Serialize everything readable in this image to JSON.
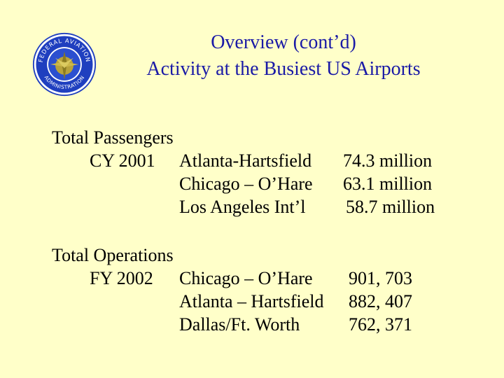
{
  "seal": {
    "top_text": "FEDERAL AVIATION",
    "bottom_text": "ADMINISTRATION",
    "colors": {
      "ring": "#1f3fbf",
      "inner": "#2b4fd0",
      "text": "#ffffff",
      "emblem": "#b8a23c"
    }
  },
  "title": {
    "line1": "Overview (cont’d)",
    "line2": "Activity at the Busiest US Airports",
    "color": "#1a1aa6"
  },
  "passengers": {
    "heading": "Total Passengers",
    "period": "CY 2001",
    "rows": [
      {
        "airport": "Atlanta-Hartsfield",
        "value": "74.3 million"
      },
      {
        "airport": "Chicago – O’Hare",
        "value": "63.1 million"
      },
      {
        "airport": "Los Angeles Int’l",
        "value": "58.7 million"
      }
    ]
  },
  "operations": {
    "heading": "Total Operations",
    "period": "FY 2002",
    "rows": [
      {
        "airport": "Chicago – O’Hare",
        "value": "901, 703"
      },
      {
        "airport": "Atlanta – Hartsfield",
        "value": "882, 407"
      },
      {
        "airport": "Dallas/Ft. Worth",
        "value": "762, 371"
      }
    ]
  },
  "background": "#FFFFC9"
}
